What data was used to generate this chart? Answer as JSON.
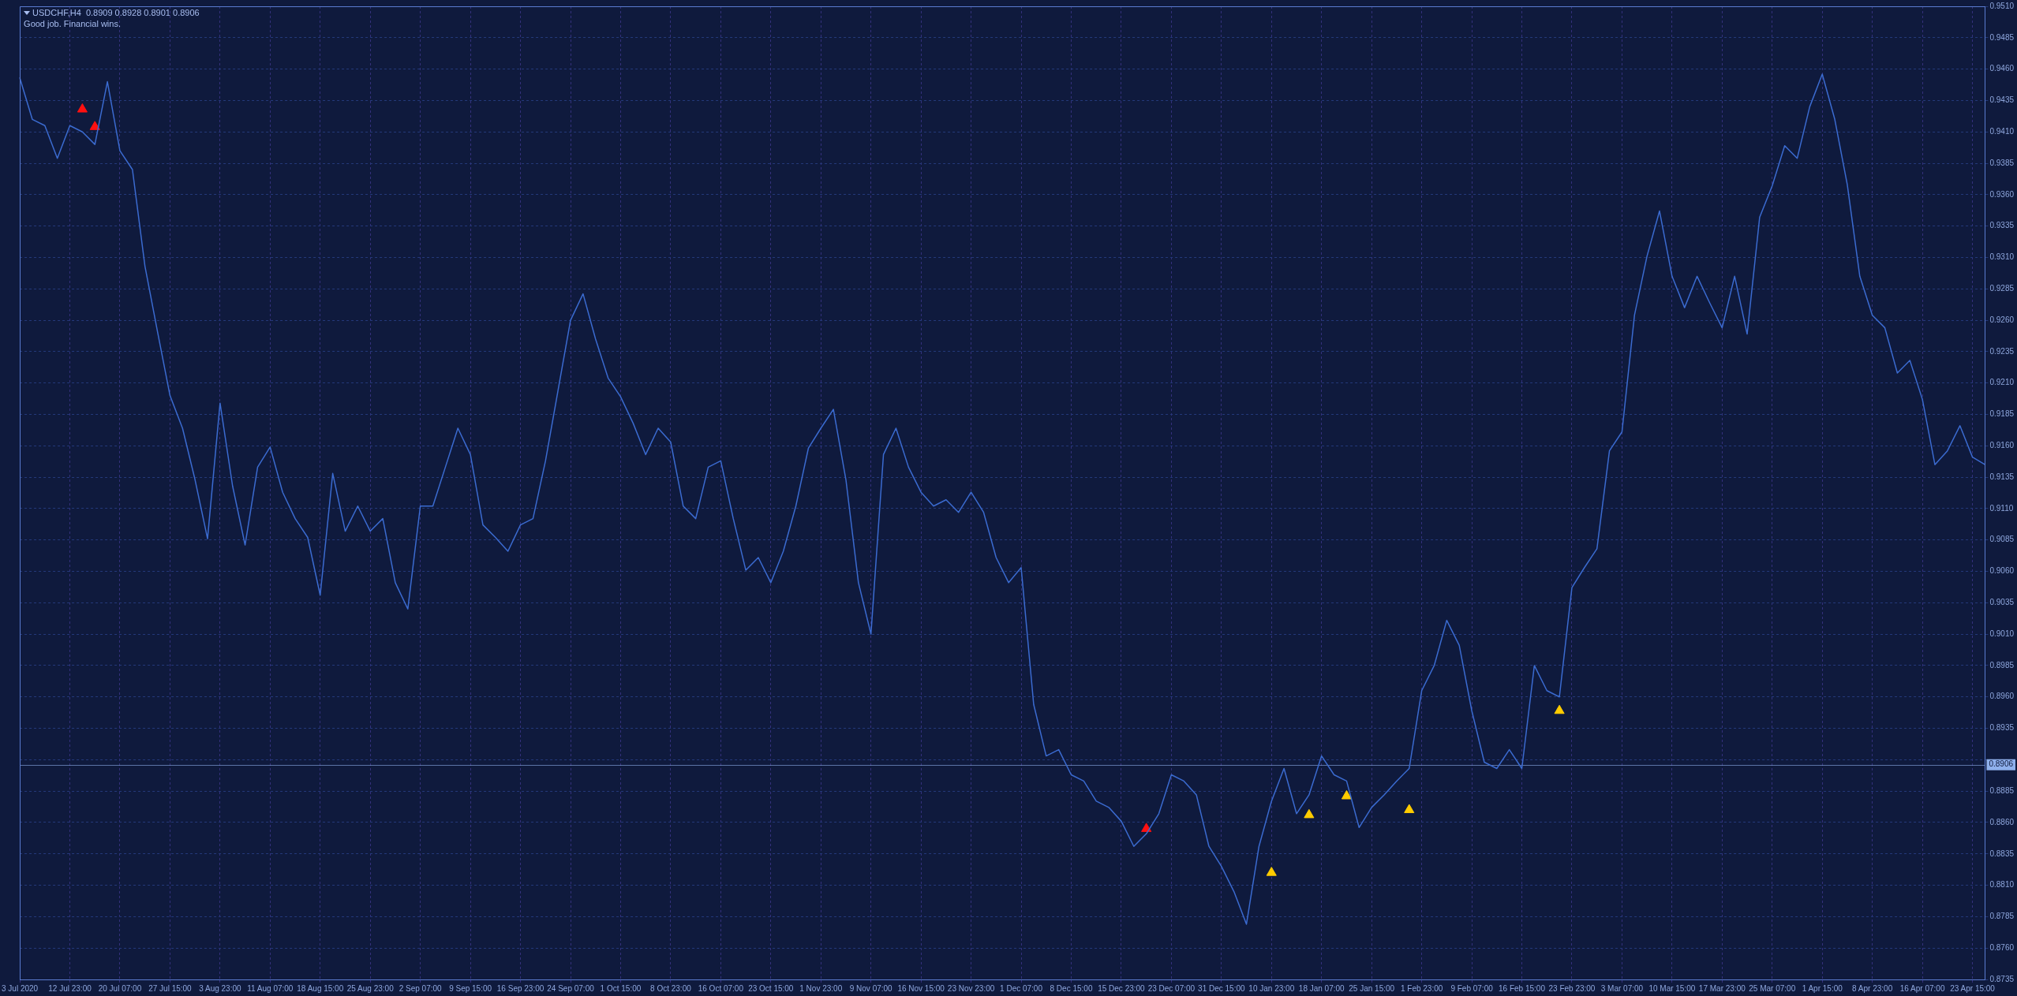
{
  "chart_data": {
    "type": "line",
    "title": "USDCHF,H4  0.8909 0.8928 0.8901 0.8906",
    "subtitle": "Good job. Financial wins.",
    "categories": [
      "3 Jul 2020",
      null,
      null,
      null,
      "12 Jul 23:00",
      null,
      null,
      null,
      "20 Jul 07:00",
      null,
      null,
      null,
      "27 Jul 15:00",
      null,
      null,
      null,
      "3 Aug 23:00",
      null,
      null,
      null,
      "11 Aug 07:00",
      null,
      null,
      null,
      "18 Aug 15:00",
      null,
      null,
      null,
      "25 Aug 23:00",
      null,
      null,
      null,
      "2 Sep 07:00",
      null,
      null,
      null,
      "9 Sep 15:00",
      null,
      null,
      null,
      "16 Sep 23:00",
      null,
      null,
      null,
      "24 Sep 07:00",
      null,
      null,
      null,
      "1 Oct 15:00",
      null,
      null,
      null,
      "8 Oct 23:00",
      null,
      null,
      null,
      "16 Oct 07:00",
      null,
      null,
      null,
      "23 Oct 15:00",
      null,
      null,
      null,
      "1 Nov 23:00",
      null,
      null,
      null,
      "9 Nov 07:00",
      null,
      null,
      null,
      "16 Nov 15:00",
      null,
      null,
      null,
      "23 Nov 23:00",
      null,
      null,
      null,
      "1 Dec 07:00",
      null,
      null,
      null,
      "8 Dec 15:00",
      null,
      null,
      null,
      "15 Dec 23:00",
      null,
      null,
      null,
      "23 Dec 07:00",
      null,
      null,
      null,
      "31 Dec 15:00",
      null,
      null,
      null,
      "10 Jan 23:00",
      null,
      null,
      null,
      "18 Jan 07:00",
      null,
      null,
      null,
      "25 Jan 15:00",
      null,
      null,
      null,
      "1 Feb 23:00",
      null,
      null,
      null,
      "9 Feb 07:00",
      null,
      null,
      null,
      "16 Feb 15:00",
      null,
      null,
      null,
      "23 Feb 23:00",
      null,
      null,
      null,
      "3 Mar 07:00",
      null,
      null,
      null,
      "10 Mar 15:00",
      null,
      null,
      null,
      "17 Mar 23:00",
      null,
      null,
      null,
      "25 Mar 07:00",
      null,
      null,
      null,
      "1 Apr 15:00",
      null,
      null,
      null,
      "8 Apr 23:00",
      null,
      null,
      null,
      "16 Apr 07:00",
      null,
      null,
      null,
      "23 Apr 15:00",
      null
    ],
    "series": [
      {
        "color": "#3b6bd0",
        "values": [
          0.9453,
          0.942,
          0.9415,
          0.9389,
          0.9415,
          0.941,
          0.94,
          0.945,
          0.9395,
          0.938,
          0.9303,
          0.9251,
          0.92,
          0.9174,
          0.9133,
          0.9086,
          0.9194,
          0.9128,
          0.9081,
          0.9143,
          0.9159,
          0.9123,
          0.9102,
          0.9087,
          0.9041,
          0.9138,
          0.9092,
          0.9112,
          0.9092,
          0.9102,
          0.9051,
          0.903,
          0.9112,
          0.9112,
          0.9143,
          0.9174,
          0.9153,
          0.9097,
          0.9087,
          0.9076,
          0.9097,
          0.9102,
          0.9148,
          0.9204,
          0.926,
          0.9281,
          0.9245,
          0.9214,
          0.9199,
          0.9178,
          0.9153,
          0.9174,
          0.9163,
          0.9112,
          0.9102,
          0.9143,
          0.9148,
          0.9102,
          0.9061,
          0.9071,
          0.9051,
          0.9076,
          0.9112,
          0.9158,
          0.9174,
          0.9189,
          0.9133,
          0.9051,
          0.901,
          0.9153,
          0.9174,
          0.9143,
          0.9123,
          0.9112,
          0.9117,
          0.9107,
          0.9123,
          0.9107,
          0.9071,
          0.9051,
          0.9063,
          0.8954,
          0.8913,
          0.8918,
          0.8898,
          0.8893,
          0.8877,
          0.8872,
          0.8861,
          0.8841,
          0.8851,
          0.8867,
          0.8898,
          0.8893,
          0.8882,
          0.8841,
          0.8825,
          0.8805,
          0.8779,
          0.8841,
          0.8877,
          0.8903,
          0.8867,
          0.8882,
          0.8913,
          0.8898,
          0.8893,
          0.8856,
          0.8872,
          0.8882,
          0.8893,
          0.8903,
          0.8965,
          0.8985,
          0.9021,
          0.9001,
          0.8949,
          0.8908,
          0.8903,
          0.8918,
          0.8903,
          0.8985,
          0.8965,
          0.896,
          0.9047,
          0.9063,
          0.9078,
          0.9156,
          0.9171,
          0.9264,
          0.9311,
          0.9347,
          0.9295,
          0.927,
          0.9295,
          0.9274,
          0.9254,
          0.9295,
          0.9249,
          0.9342,
          0.9367,
          0.9399,
          0.9389,
          0.943,
          0.9456,
          0.942,
          0.9368,
          0.9295,
          0.9264,
          0.9254,
          0.9218,
          0.9228,
          0.9197,
          0.9145,
          0.9156,
          0.9176,
          0.9151,
          0.9145
        ]
      },
      {
        "type": "scatter",
        "color": "#ff1010",
        "marker": "triangle",
        "values": [
          null,
          null,
          null,
          null,
          null,
          0.9428,
          0.9414,
          null,
          null,
          null,
          null,
          null,
          null,
          null,
          null,
          null,
          null,
          null,
          null,
          null,
          null,
          null,
          null,
          null,
          null,
          null,
          null,
          null,
          null,
          null,
          null,
          null,
          null,
          null,
          null,
          null,
          null,
          null,
          null,
          null,
          null,
          null,
          null,
          null,
          null,
          null,
          null,
          null,
          null,
          null,
          null,
          null,
          null,
          null,
          null,
          null,
          null,
          null,
          null,
          null,
          null,
          null,
          null,
          null,
          null,
          null,
          null,
          null,
          null,
          null,
          null,
          null,
          null,
          null,
          null,
          null,
          null,
          null,
          null,
          null,
          null,
          null,
          null,
          null,
          null,
          null,
          null,
          null,
          null,
          null,
          0.8855,
          null,
          null,
          null,
          null,
          null,
          null,
          null,
          null,
          null,
          null,
          null,
          null,
          null,
          null,
          null,
          null,
          null,
          null,
          null,
          null,
          null,
          null,
          null,
          null,
          null,
          null,
          null,
          null,
          null,
          null,
          null,
          null,
          null,
          null,
          null,
          null,
          null,
          null,
          null,
          null,
          null,
          null,
          null,
          null,
          null,
          null,
          null,
          null,
          null,
          null,
          null,
          null,
          null,
          null,
          null,
          null,
          null,
          null,
          null,
          null,
          null,
          null,
          null,
          null,
          null,
          null,
          null
        ]
      },
      {
        "type": "scatter",
        "color": "#ffcc00",
        "marker": "triangle",
        "values": [
          null,
          null,
          null,
          null,
          null,
          null,
          null,
          null,
          null,
          null,
          null,
          null,
          null,
          null,
          null,
          null,
          null,
          null,
          null,
          null,
          null,
          null,
          null,
          null,
          null,
          null,
          null,
          null,
          null,
          null,
          null,
          null,
          null,
          null,
          null,
          null,
          null,
          null,
          null,
          null,
          null,
          null,
          null,
          null,
          null,
          null,
          null,
          null,
          null,
          null,
          null,
          null,
          null,
          null,
          null,
          null,
          null,
          null,
          null,
          null,
          null,
          null,
          null,
          null,
          null,
          null,
          null,
          null,
          null,
          null,
          null,
          null,
          null,
          null,
          null,
          null,
          null,
          null,
          null,
          null,
          null,
          null,
          null,
          null,
          null,
          null,
          null,
          null,
          null,
          null,
          null,
          null,
          null,
          null,
          null,
          null,
          null,
          null,
          null,
          null,
          0.882,
          null,
          null,
          0.8866,
          null,
          null,
          0.8881,
          null,
          null,
          null,
          null,
          0.887,
          null,
          null,
          null,
          null,
          null,
          null,
          null,
          null,
          null,
          null,
          null,
          0.8949,
          null,
          null,
          null,
          null,
          null,
          null,
          null,
          null,
          null,
          null,
          null,
          null,
          null,
          null,
          null,
          null,
          null,
          null,
          null,
          null,
          null,
          null,
          null,
          null,
          null,
          null,
          null,
          null,
          null,
          null,
          null,
          null,
          null,
          null
        ]
      }
    ],
    "ylim": [
      0.8735,
      0.951
    ],
    "yticks": [
      0.8735,
      {
        "value": 0.876,
        "label": "0.8760"
      },
      0.8785,
      {
        "value": 0.881,
        "label": "0.8810"
      },
      0.8835,
      {
        "value": 0.886,
        "label": "0.8860"
      },
      0.8885,
      {
        "value": 0.891,
        "label": null
      },
      0.8935,
      {
        "value": 0.896,
        "label": "0.8960"
      },
      0.8985,
      {
        "value": 0.901,
        "label": "0.9010"
      },
      0.9035,
      {
        "value": 0.906,
        "label": "0.9060"
      },
      0.9085,
      {
        "value": 0.911,
        "label": "0.9110"
      },
      0.9135,
      {
        "value": 0.916,
        "label": "0.9160"
      },
      0.9185,
      {
        "value": 0.921,
        "label": "0.9210"
      },
      0.9235,
      {
        "value": 0.926,
        "label": "0.9260"
      },
      0.9285,
      {
        "value": 0.931,
        "label": "0.9310"
      },
      0.9335,
      {
        "value": 0.936,
        "label": "0.9360"
      },
      0.9385,
      {
        "value": 0.941,
        "label": "0.9410"
      },
      0.9435,
      {
        "value": 0.946,
        "label": "0.9460"
      },
      0.9485,
      {
        "value": 0.951,
        "label": "0.9510"
      }
    ],
    "ref_lines": [
      {
        "axis": "y",
        "value": 0.8906,
        "label": "0.8906",
        "color": "#8fb0ec"
      }
    ],
    "grid": true
  }
}
